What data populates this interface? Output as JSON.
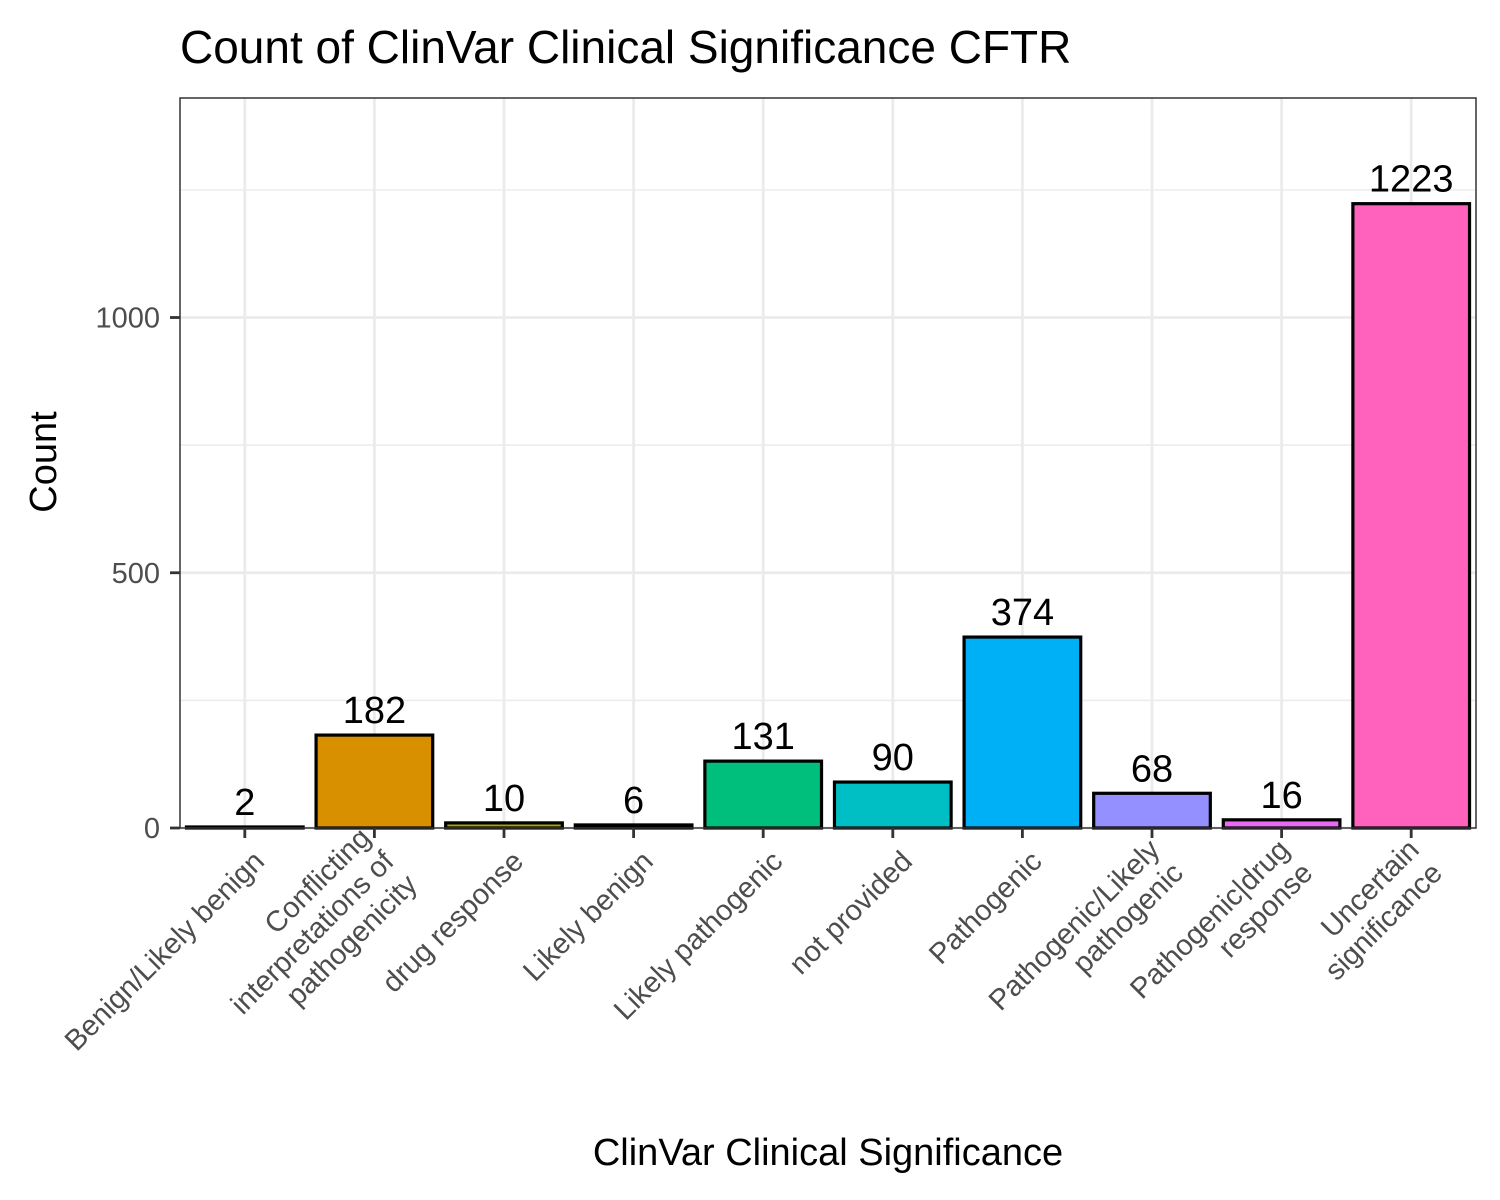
{
  "chart_data": {
    "type": "bar",
    "title": "Count of ClinVar Clinical Significance CFTR",
    "xlabel": "ClinVar Clinical Significance",
    "ylabel": "Count",
    "categories": [
      [
        "Benign/Likely benign"
      ],
      [
        "Conflicting",
        "interpretations of",
        "pathogenicity"
      ],
      [
        "drug response"
      ],
      [
        "Likely benign"
      ],
      [
        "Likely pathogenic"
      ],
      [
        "not provided"
      ],
      [
        "Pathogenic"
      ],
      [
        "Pathogenic/Likely",
        "pathogenic"
      ],
      [
        "Pathogenic|drug",
        "response"
      ],
      [
        "Uncertain",
        "significance"
      ]
    ],
    "values": [
      2,
      182,
      10,
      6,
      131,
      90,
      374,
      68,
      16,
      1223
    ],
    "data_labels": [
      "2",
      "182",
      "10",
      "6",
      "131",
      "90",
      "374",
      "68",
      "16",
      "1223"
    ],
    "colors": [
      "#F8766D",
      "#D89000",
      "#A3A500",
      "#39B600",
      "#00BF7D",
      "#00BFC4",
      "#00B0F6",
      "#9590FF",
      "#E76BF3",
      "#FF62BC"
    ],
    "ylim": [
      0,
      1430
    ],
    "yticks": [
      0,
      500,
      1000
    ],
    "ytick_labels": [
      "0",
      "500",
      "1000"
    ],
    "y_minor_ticks": [
      250,
      750,
      1250
    ],
    "grid": true,
    "legend": "none"
  }
}
